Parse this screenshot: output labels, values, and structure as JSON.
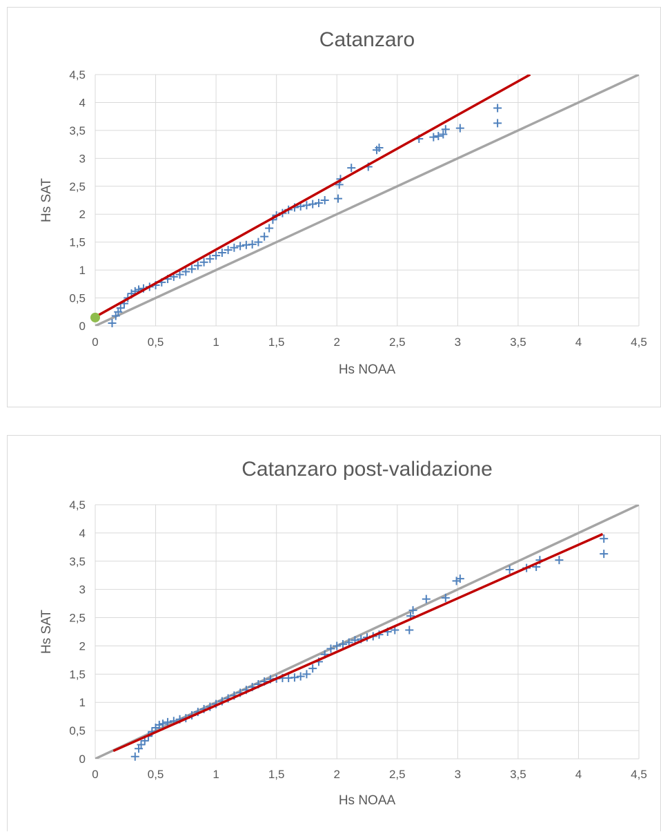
{
  "chart_data": [
    {
      "type": "scatter",
      "title": "Catanzaro",
      "xlabel": "Hs NOAA",
      "ylabel": "Hs SAT",
      "xlim": [
        0,
        4.5
      ],
      "ylim": [
        0,
        4.5
      ],
      "x_ticks": [
        "0",
        "0,5",
        "1",
        "1,5",
        "2",
        "2,5",
        "3",
        "3,5",
        "4",
        "4,5"
      ],
      "y_ticks": [
        "0",
        "0,5",
        "1",
        "1,5",
        "2",
        "2,5",
        "3",
        "3,5",
        "4",
        "4,5"
      ],
      "grid": true,
      "legend": "none",
      "reference_line": {
        "from": [
          0,
          0
        ],
        "to": [
          4.5,
          4.5
        ],
        "color": "#a5a5a5"
      },
      "fit_line": {
        "from": [
          0,
          0.16
        ],
        "to": [
          3.6,
          4.5
        ],
        "color": "#c00000"
      },
      "highlight_point": {
        "x": 0,
        "y": 0.15,
        "color": "#8fbc4c"
      },
      "marker_color": "#4f81bd",
      "series": [
        {
          "x": [
            0.14,
            0.17,
            0.19,
            0.21,
            0.24,
            0.27,
            0.3,
            0.33,
            0.36,
            0.4,
            0.45,
            0.5,
            0.55,
            0.6,
            0.65,
            0.7,
            0.75,
            0.8,
            0.85,
            0.9,
            0.95,
            1.0,
            1.05,
            1.1,
            1.15,
            1.2,
            1.25,
            1.3,
            1.35,
            1.4,
            1.44,
            1.47,
            1.5,
            1.55,
            1.6,
            1.65,
            1.7,
            1.75,
            1.8,
            1.85,
            1.9,
            2.01,
            2.02,
            2.03,
            2.12,
            2.26,
            2.33,
            2.35,
            2.68,
            2.8,
            2.84,
            2.88,
            2.9,
            3.02,
            3.33,
            3.33
          ],
          "y": [
            0.05,
            0.18,
            0.25,
            0.32,
            0.4,
            0.5,
            0.58,
            0.62,
            0.65,
            0.67,
            0.7,
            0.73,
            0.78,
            0.84,
            0.88,
            0.92,
            0.97,
            1.02,
            1.08,
            1.14,
            1.2,
            1.26,
            1.31,
            1.36,
            1.4,
            1.43,
            1.45,
            1.46,
            1.5,
            1.6,
            1.75,
            1.9,
            1.98,
            2.02,
            2.08,
            2.12,
            2.14,
            2.16,
            2.18,
            2.2,
            2.25,
            2.28,
            2.53,
            2.63,
            2.83,
            2.85,
            3.15,
            3.19,
            3.35,
            3.38,
            3.4,
            3.43,
            3.52,
            3.54,
            3.63,
            3.9
          ]
        }
      ]
    },
    {
      "type": "scatter",
      "title": "Catanzaro post-validazione",
      "xlabel": "Hs NOAA",
      "ylabel": "Hs SAT",
      "xlim": [
        0,
        4.5
      ],
      "ylim": [
        0,
        4.5
      ],
      "x_ticks": [
        "0",
        "0,5",
        "1",
        "1,5",
        "2",
        "2,5",
        "3",
        "3,5",
        "4",
        "4,5"
      ],
      "y_ticks": [
        "0",
        "0,5",
        "1",
        "1,5",
        "2",
        "2,5",
        "3",
        "3,5",
        "4",
        "4,5"
      ],
      "grid": true,
      "legend": "none",
      "reference_line": {
        "from": [
          0,
          0
        ],
        "to": [
          4.5,
          4.5
        ],
        "color": "#a5a5a5"
      },
      "fit_line": {
        "from": [
          0.15,
          0.14
        ],
        "to": [
          4.2,
          3.98
        ],
        "color": "#c00000"
      },
      "marker_color": "#4f81bd",
      "series": [
        {
          "x": [
            0.33,
            0.36,
            0.38,
            0.41,
            0.44,
            0.47,
            0.5,
            0.53,
            0.56,
            0.6,
            0.65,
            0.7,
            0.75,
            0.8,
            0.85,
            0.9,
            0.95,
            1.0,
            1.05,
            1.1,
            1.15,
            1.2,
            1.25,
            1.3,
            1.35,
            1.4,
            1.45,
            1.5,
            1.55,
            1.6,
            1.65,
            1.7,
            1.75,
            1.8,
            1.85,
            1.9,
            1.95,
            2.0,
            2.05,
            2.1,
            2.15,
            2.2,
            2.25,
            2.3,
            2.35,
            2.42,
            2.48,
            2.6,
            2.61,
            2.63,
            2.74,
            2.9,
            2.99,
            3.02,
            3.43,
            3.57,
            3.65,
            3.68,
            3.84,
            4.21,
            4.21
          ],
          "y": [
            0.04,
            0.18,
            0.25,
            0.32,
            0.4,
            0.48,
            0.55,
            0.6,
            0.62,
            0.65,
            0.67,
            0.7,
            0.72,
            0.77,
            0.83,
            0.88,
            0.92,
            0.97,
            1.02,
            1.07,
            1.12,
            1.17,
            1.22,
            1.27,
            1.32,
            1.37,
            1.41,
            1.42,
            1.43,
            1.43,
            1.44,
            1.46,
            1.5,
            1.6,
            1.72,
            1.85,
            1.95,
            2.0,
            2.03,
            2.06,
            2.1,
            2.12,
            2.15,
            2.17,
            2.2,
            2.25,
            2.28,
            2.28,
            2.53,
            2.63,
            2.83,
            2.85,
            3.15,
            3.19,
            3.35,
            3.38,
            3.4,
            3.52,
            3.52,
            3.63,
            3.9
          ]
        }
      ]
    }
  ]
}
